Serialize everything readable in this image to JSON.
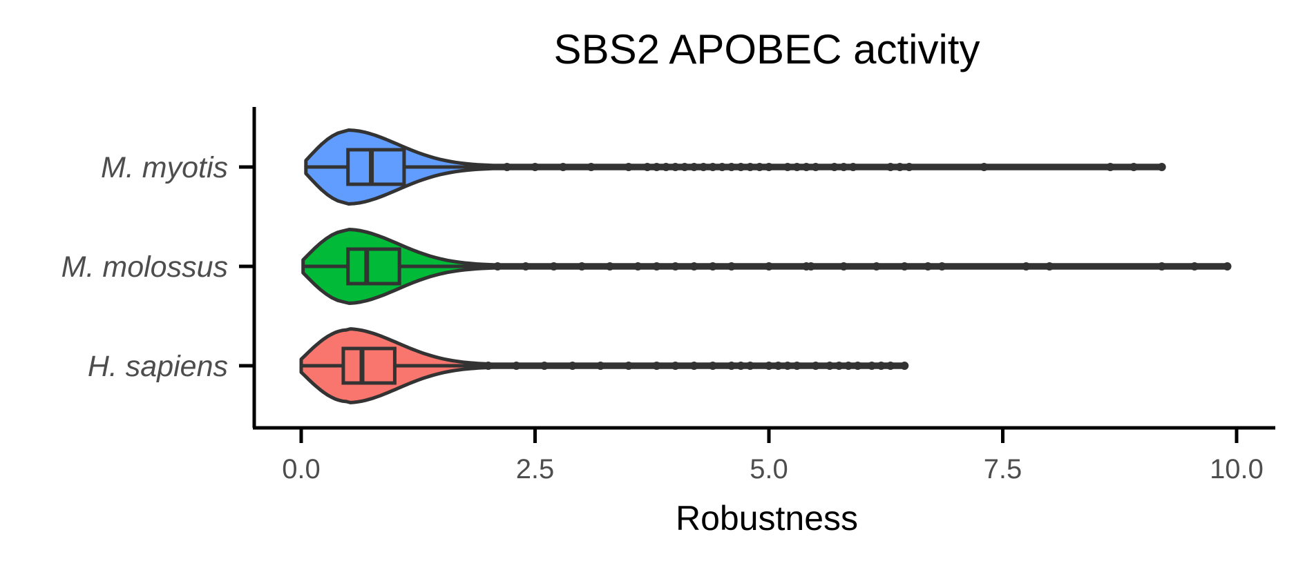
{
  "chart_data": {
    "type": "violin",
    "title": "SBS2 APOBEC activity",
    "xlabel": "Robustness",
    "ylabel": "",
    "xlim": [
      -0.5,
      10.4
    ],
    "xticks": [
      "0.0",
      "2.5",
      "5.0",
      "7.5",
      "10.0"
    ],
    "xtick_values": [
      0,
      2.5,
      5,
      7.5,
      10
    ],
    "grid": false,
    "legend": "none",
    "categories": [
      "M. myotis",
      "M. molossus",
      "H. sapiens"
    ],
    "series": [
      {
        "category": "M. myotis",
        "color": "#619CFF",
        "min": 0.05,
        "q1": 0.5,
        "median": 0.75,
        "q3": 1.1,
        "whisker_high": 2.0,
        "max": 9.2,
        "density_peak": 0.5,
        "outliers": [
          2.2,
          2.5,
          2.8,
          3.1,
          3.5,
          3.7,
          3.8,
          3.9,
          4.0,
          4.1,
          4.2,
          4.3,
          4.4,
          4.5,
          4.6,
          4.7,
          4.8,
          4.9,
          5.0,
          5.2,
          5.3,
          5.4,
          5.5,
          5.7,
          5.8,
          5.9,
          6.3,
          6.4,
          6.5,
          7.3,
          8.65,
          8.9,
          9.2
        ]
      },
      {
        "category": "M. molossus",
        "color": "#00BA38",
        "min": 0.02,
        "q1": 0.5,
        "median": 0.7,
        "q3": 1.05,
        "whisker_high": 1.9,
        "max": 9.9,
        "density_peak": 0.5,
        "outliers": [
          2.1,
          2.4,
          2.7,
          3.0,
          3.3,
          3.6,
          3.8,
          4.0,
          4.2,
          4.4,
          4.6,
          5.0,
          5.4,
          5.45,
          5.8,
          6.15,
          6.45,
          6.7,
          6.85,
          7.75,
          8.0,
          9.2,
          9.55,
          9.9
        ]
      },
      {
        "category": "H. sapiens",
        "color": "#F8766D",
        "min": 0.0,
        "q1": 0.45,
        "median": 0.65,
        "q3": 1.0,
        "whisker_high": 1.8,
        "max": 6.45,
        "density_peak": 0.5,
        "outliers": [
          2.0,
          2.3,
          2.6,
          2.9,
          3.2,
          3.5,
          3.8,
          4.0,
          4.2,
          4.4,
          4.6,
          4.7,
          4.8,
          5.0,
          5.1,
          5.2,
          5.3,
          5.5,
          5.65,
          5.75,
          5.85,
          5.95,
          6.1,
          6.2,
          6.3,
          6.45
        ]
      }
    ]
  }
}
